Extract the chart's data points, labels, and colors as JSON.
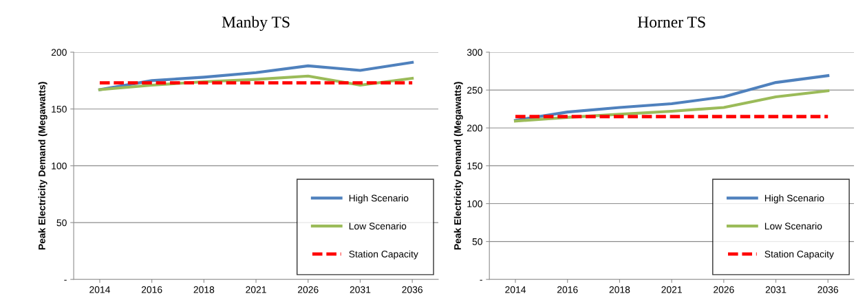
{
  "chart_data": [
    {
      "type": "line",
      "title": "Manby TS",
      "ylabel": "Peak Electricity Demand (Megawatts)",
      "categories": [
        "2014",
        "2016",
        "2018",
        "2021",
        "2026",
        "2031",
        "2036"
      ],
      "series": [
        {
          "name": "High Scenario",
          "color": "#4f81bd",
          "line_style": "solid",
          "values": [
            167,
            175,
            178,
            182,
            188,
            184,
            191
          ]
        },
        {
          "name": "Low Scenario",
          "color": "#9bbb59",
          "line_style": "solid",
          "values": [
            167,
            171,
            174,
            176,
            179,
            171,
            177
          ]
        },
        {
          "name": "Station Capacity",
          "color": "#ff0000",
          "line_style": "dashed",
          "values": [
            173,
            173,
            173,
            173,
            173,
            173,
            173
          ]
        }
      ],
      "ylim": [
        0,
        200
      ],
      "yticks": [
        {
          "value": 0,
          "label": "-"
        },
        50,
        100,
        150,
        200
      ],
      "grid": "y",
      "legend": "bottom right",
      "marker": "none"
    },
    {
      "type": "line",
      "title": "Horner TS",
      "ylabel": "Peak Electricity Demand (Megawatts)",
      "categories": [
        "2014",
        "2016",
        "2018",
        "2021",
        "2026",
        "2031",
        "2036"
      ],
      "series": [
        {
          "name": "High Scenario",
          "color": "#4f81bd",
          "line_style": "solid",
          "values": [
            210,
            221,
            227,
            232,
            241,
            260,
            269
          ]
        },
        {
          "name": "Low Scenario",
          "color": "#9bbb59",
          "line_style": "solid",
          "values": [
            209,
            214,
            218,
            222,
            227,
            241,
            249
          ]
        },
        {
          "name": "Station Capacity",
          "color": "#ff0000",
          "line_style": "dashed",
          "values": [
            215,
            215,
            215,
            215,
            215,
            215,
            215
          ]
        }
      ],
      "ylim": [
        0,
        300
      ],
      "yticks": [
        {
          "value": 0,
          "label": "-"
        },
        50,
        100,
        150,
        200,
        250,
        300
      ],
      "grid": "y",
      "legend": "bottom right",
      "marker": "none"
    }
  ]
}
